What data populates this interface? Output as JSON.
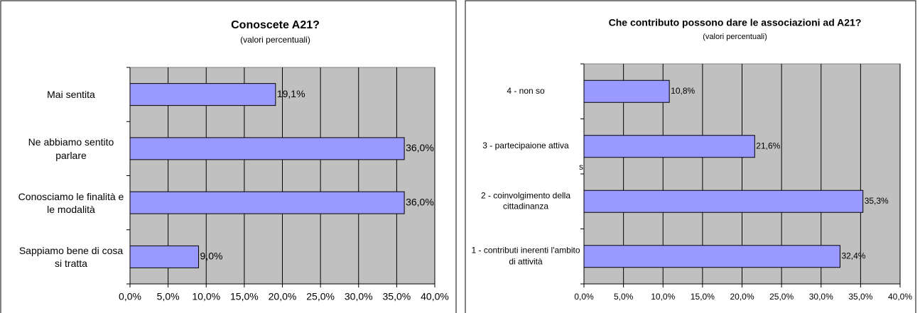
{
  "chart_data": [
    {
      "type": "bar",
      "orientation": "horizontal",
      "title": "Conoscete A21?",
      "subtitle": "(valori percentuali)",
      "categories": [
        "Mai sentita",
        "Ne abbiamo sentito parlare",
        "Conosciamo le finalità e le modalità",
        "Sappiamo bene di cosa si tratta"
      ],
      "values": [
        19.1,
        36.0,
        36.0,
        9.0
      ],
      "value_labels": [
        "19,1%",
        "36,0%",
        "36,0%",
        "9,0%"
      ],
      "color": "#9999ff",
      "xlim": [
        0,
        40
      ],
      "xticks": [
        {
          "value": 0,
          "label": "0,0%"
        },
        {
          "value": 5,
          "label": "5,0%"
        },
        {
          "value": 10,
          "label": "10,0%"
        },
        {
          "value": 15,
          "label": "15,0%"
        },
        {
          "value": 20,
          "label": "20,0%"
        },
        {
          "value": 25,
          "label": "25,0%"
        },
        {
          "value": 30,
          "label": "30,0%"
        },
        {
          "value": 35,
          "label": "35,0%"
        },
        {
          "value": 40,
          "label": "40,0%"
        }
      ],
      "grid": true
    },
    {
      "type": "bar",
      "orientation": "horizontal",
      "title": "Che contributo possono dare le associazioni ad A21?",
      "subtitle": "(valori percentuali)",
      "categories": [
        "4 - non so",
        "3 - partecipaione attiva",
        "2 - coinvolgimento della cittadinanza",
        "1 - contributi inerenti l'ambito di attività"
      ],
      "values": [
        10.8,
        21.6,
        35.3,
        32.4
      ],
      "value_labels": [
        "10,8%",
        "21,6%",
        "35,3%",
        "32,4%"
      ],
      "color": "#9999ff",
      "xlim": [
        0,
        40
      ],
      "xticks": [
        {
          "value": 0,
          "label": "0,0%"
        },
        {
          "value": 5,
          "label": "5,0%"
        },
        {
          "value": 10,
          "label": "10,0%"
        },
        {
          "value": 15,
          "label": "15,0%"
        },
        {
          "value": 20,
          "label": "20,0%"
        },
        {
          "value": 25,
          "label": "25,0%"
        },
        {
          "value": 30,
          "label": "30,0%"
        },
        {
          "value": 35,
          "label": "35,0%"
        },
        {
          "value": 40,
          "label": "40,0%"
        }
      ],
      "grid": true,
      "annotation": "s"
    }
  ]
}
